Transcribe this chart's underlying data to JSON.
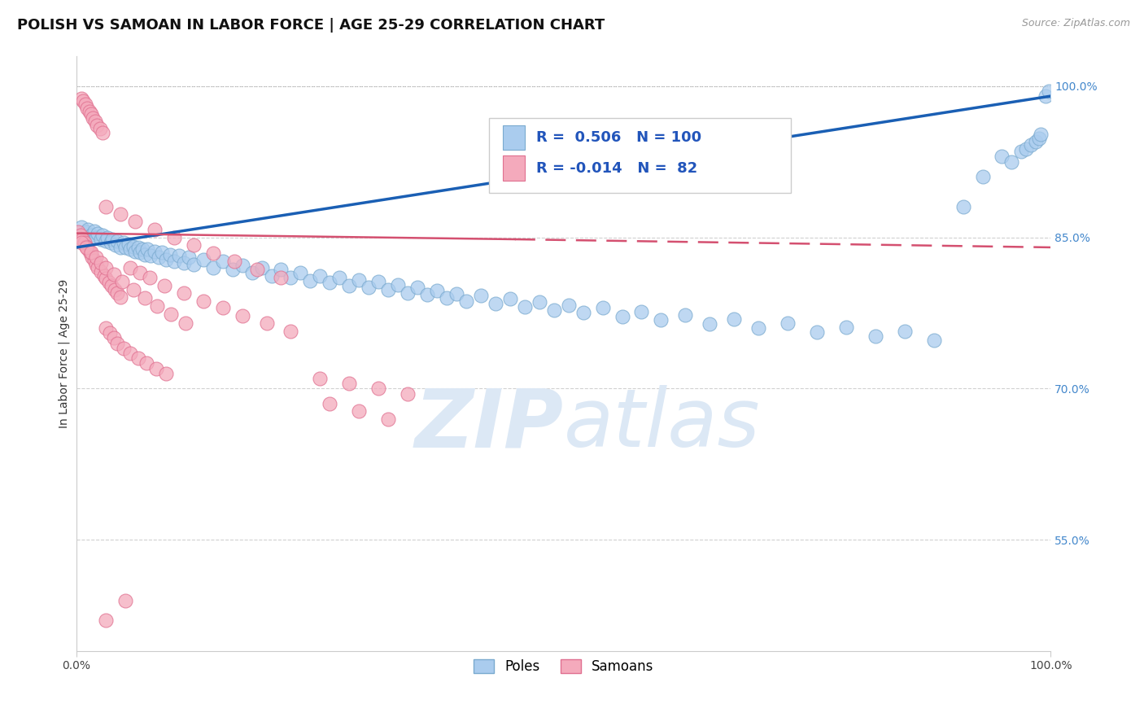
{
  "title": "POLISH VS SAMOAN IN LABOR FORCE | AGE 25-29 CORRELATION CHART",
  "source_text": "Source: ZipAtlas.com",
  "ylabel": "In Labor Force | Age 25-29",
  "xlim": [
    0.0,
    1.0
  ],
  "ylim": [
    0.44,
    1.03
  ],
  "yticks": [
    0.55,
    0.7,
    0.85,
    1.0
  ],
  "ytick_labels": [
    "55.0%",
    "70.0%",
    "85.0%",
    "100.0%"
  ],
  "xticks": [
    0.0,
    1.0
  ],
  "xtick_labels": [
    "0.0%",
    "100.0%"
  ],
  "poles_R": 0.506,
  "poles_N": 100,
  "samoans_R": -0.014,
  "samoans_N": 82,
  "poles_color": "#aaccee",
  "poles_edge_color": "#7aaacf",
  "samoans_color": "#f4aabc",
  "samoans_edge_color": "#e07090",
  "trend_poles_color": "#1a5fb4",
  "trend_samoans_color": "#d45070",
  "background_color": "#ffffff",
  "watermark_color": "#dce8f5",
  "title_fontsize": 13,
  "axis_label_fontsize": 10,
  "tick_label_fontsize": 10,
  "legend_fontsize": 13,
  "poles_x": [
    0.005,
    0.01,
    0.012,
    0.015,
    0.018,
    0.02,
    0.022,
    0.025,
    0.027,
    0.03,
    0.032,
    0.035,
    0.037,
    0.04,
    0.042,
    0.045,
    0.048,
    0.05,
    0.053,
    0.055,
    0.058,
    0.06,
    0.063,
    0.065,
    0.068,
    0.07,
    0.073,
    0.076,
    0.08,
    0.084,
    0.088,
    0.092,
    0.096,
    0.1,
    0.105,
    0.11,
    0.115,
    0.12,
    0.13,
    0.14,
    0.15,
    0.16,
    0.17,
    0.18,
    0.19,
    0.2,
    0.21,
    0.22,
    0.23,
    0.24,
    0.25,
    0.26,
    0.27,
    0.28,
    0.29,
    0.3,
    0.31,
    0.32,
    0.33,
    0.34,
    0.35,
    0.36,
    0.37,
    0.38,
    0.39,
    0.4,
    0.415,
    0.43,
    0.445,
    0.46,
    0.475,
    0.49,
    0.505,
    0.52,
    0.54,
    0.56,
    0.58,
    0.6,
    0.625,
    0.65,
    0.675,
    0.7,
    0.73,
    0.76,
    0.79,
    0.82,
    0.85,
    0.88,
    0.91,
    0.93,
    0.95,
    0.96,
    0.97,
    0.975,
    0.98,
    0.985,
    0.988,
    0.99,
    0.995,
    0.998
  ],
  "poles_y": [
    0.86,
    0.855,
    0.858,
    0.852,
    0.856,
    0.85,
    0.854,
    0.848,
    0.852,
    0.846,
    0.85,
    0.845,
    0.848,
    0.842,
    0.846,
    0.84,
    0.845,
    0.84,
    0.843,
    0.838,
    0.841,
    0.836,
    0.84,
    0.835,
    0.838,
    0.833,
    0.838,
    0.832,
    0.836,
    0.83,
    0.835,
    0.828,
    0.833,
    0.826,
    0.832,
    0.825,
    0.83,
    0.823,
    0.828,
    0.82,
    0.826,
    0.818,
    0.822,
    0.815,
    0.82,
    0.812,
    0.818,
    0.81,
    0.815,
    0.807,
    0.812,
    0.805,
    0.81,
    0.802,
    0.808,
    0.8,
    0.806,
    0.798,
    0.803,
    0.795,
    0.8,
    0.793,
    0.797,
    0.79,
    0.794,
    0.787,
    0.792,
    0.784,
    0.789,
    0.781,
    0.786,
    0.778,
    0.783,
    0.775,
    0.78,
    0.771,
    0.776,
    0.768,
    0.773,
    0.764,
    0.769,
    0.76,
    0.765,
    0.756,
    0.761,
    0.752,
    0.757,
    0.748,
    0.88,
    0.91,
    0.93,
    0.925,
    0.935,
    0.938,
    0.942,
    0.945,
    0.948,
    0.952,
    0.99,
    0.995
  ],
  "samoans_x": [
    0.002,
    0.004,
    0.006,
    0.008,
    0.01,
    0.012,
    0.014,
    0.016,
    0.018,
    0.02,
    0.022,
    0.025,
    0.028,
    0.03,
    0.033,
    0.036,
    0.039,
    0.042,
    0.045,
    0.005,
    0.007,
    0.009,
    0.011,
    0.013,
    0.015,
    0.017,
    0.019,
    0.021,
    0.024,
    0.027,
    0.03,
    0.034,
    0.038,
    0.042,
    0.048,
    0.055,
    0.063,
    0.072,
    0.082,
    0.092,
    0.055,
    0.065,
    0.075,
    0.09,
    0.11,
    0.13,
    0.15,
    0.17,
    0.195,
    0.22,
    0.03,
    0.045,
    0.06,
    0.08,
    0.1,
    0.12,
    0.14,
    0.162,
    0.185,
    0.21,
    0.005,
    0.01,
    0.015,
    0.02,
    0.025,
    0.03,
    0.038,
    0.047,
    0.058,
    0.07,
    0.083,
    0.097,
    0.112,
    0.25,
    0.28,
    0.31,
    0.34,
    0.26,
    0.29,
    0.32,
    0.03,
    0.05
  ],
  "samoans_y": [
    0.855,
    0.852,
    0.848,
    0.845,
    0.841,
    0.838,
    0.834,
    0.83,
    0.827,
    0.823,
    0.82,
    0.816,
    0.812,
    0.809,
    0.805,
    0.802,
    0.798,
    0.795,
    0.791,
    0.988,
    0.985,
    0.982,
    0.978,
    0.975,
    0.972,
    0.968,
    0.965,
    0.961,
    0.958,
    0.954,
    0.76,
    0.755,
    0.75,
    0.745,
    0.74,
    0.735,
    0.73,
    0.725,
    0.72,
    0.715,
    0.82,
    0.815,
    0.81,
    0.802,
    0.795,
    0.787,
    0.78,
    0.772,
    0.765,
    0.757,
    0.88,
    0.873,
    0.866,
    0.858,
    0.85,
    0.842,
    0.834,
    0.826,
    0.818,
    0.81,
    0.845,
    0.84,
    0.835,
    0.83,
    0.825,
    0.82,
    0.813,
    0.806,
    0.798,
    0.79,
    0.782,
    0.774,
    0.765,
    0.71,
    0.705,
    0.7,
    0.695,
    0.685,
    0.678,
    0.67,
    0.47,
    0.49
  ]
}
